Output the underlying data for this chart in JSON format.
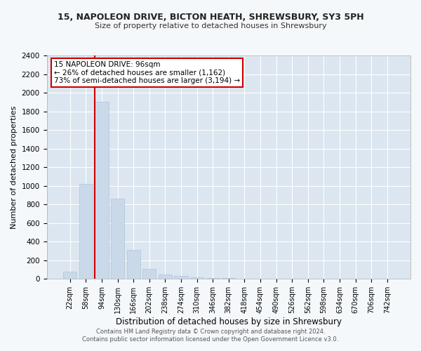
{
  "title": "15, NAPOLEON DRIVE, BICTON HEATH, SHREWSBURY, SY3 5PH",
  "subtitle": "Size of property relative to detached houses in Shrewsbury",
  "xlabel": "Distribution of detached houses by size in Shrewsbury",
  "ylabel": "Number of detached properties",
  "bar_color": "#c9d9ea",
  "bar_edge_color": "#b0c4d8",
  "background_color": "#dce6f0",
  "grid_color": "#ffffff",
  "fig_bg_color": "#f5f8fb",
  "categories": [
    "22sqm",
    "58sqm",
    "94sqm",
    "130sqm",
    "166sqm",
    "202sqm",
    "238sqm",
    "274sqm",
    "310sqm",
    "346sqm",
    "382sqm",
    "418sqm",
    "454sqm",
    "490sqm",
    "526sqm",
    "562sqm",
    "598sqm",
    "634sqm",
    "670sqm",
    "706sqm",
    "742sqm"
  ],
  "values": [
    80,
    1020,
    1900,
    860,
    310,
    110,
    50,
    35,
    20,
    10,
    10,
    5,
    2,
    1,
    0,
    0,
    0,
    0,
    0,
    0,
    0
  ],
  "ylim": [
    0,
    2400
  ],
  "yticks": [
    0,
    200,
    400,
    600,
    800,
    1000,
    1200,
    1400,
    1600,
    1800,
    2000,
    2200,
    2400
  ],
  "vline_index": 2,
  "vline_color": "#cc0000",
  "annotation_title": "15 NAPOLEON DRIVE: 96sqm",
  "annotation_line1": "← 26% of detached houses are smaller (1,162)",
  "annotation_line2": "73% of semi-detached houses are larger (3,194) →",
  "annotation_box_color": "#cc0000",
  "footer_line1": "Contains HM Land Registry data © Crown copyright and database right 2024.",
  "footer_line2": "Contains public sector information licensed under the Open Government Licence v3.0."
}
